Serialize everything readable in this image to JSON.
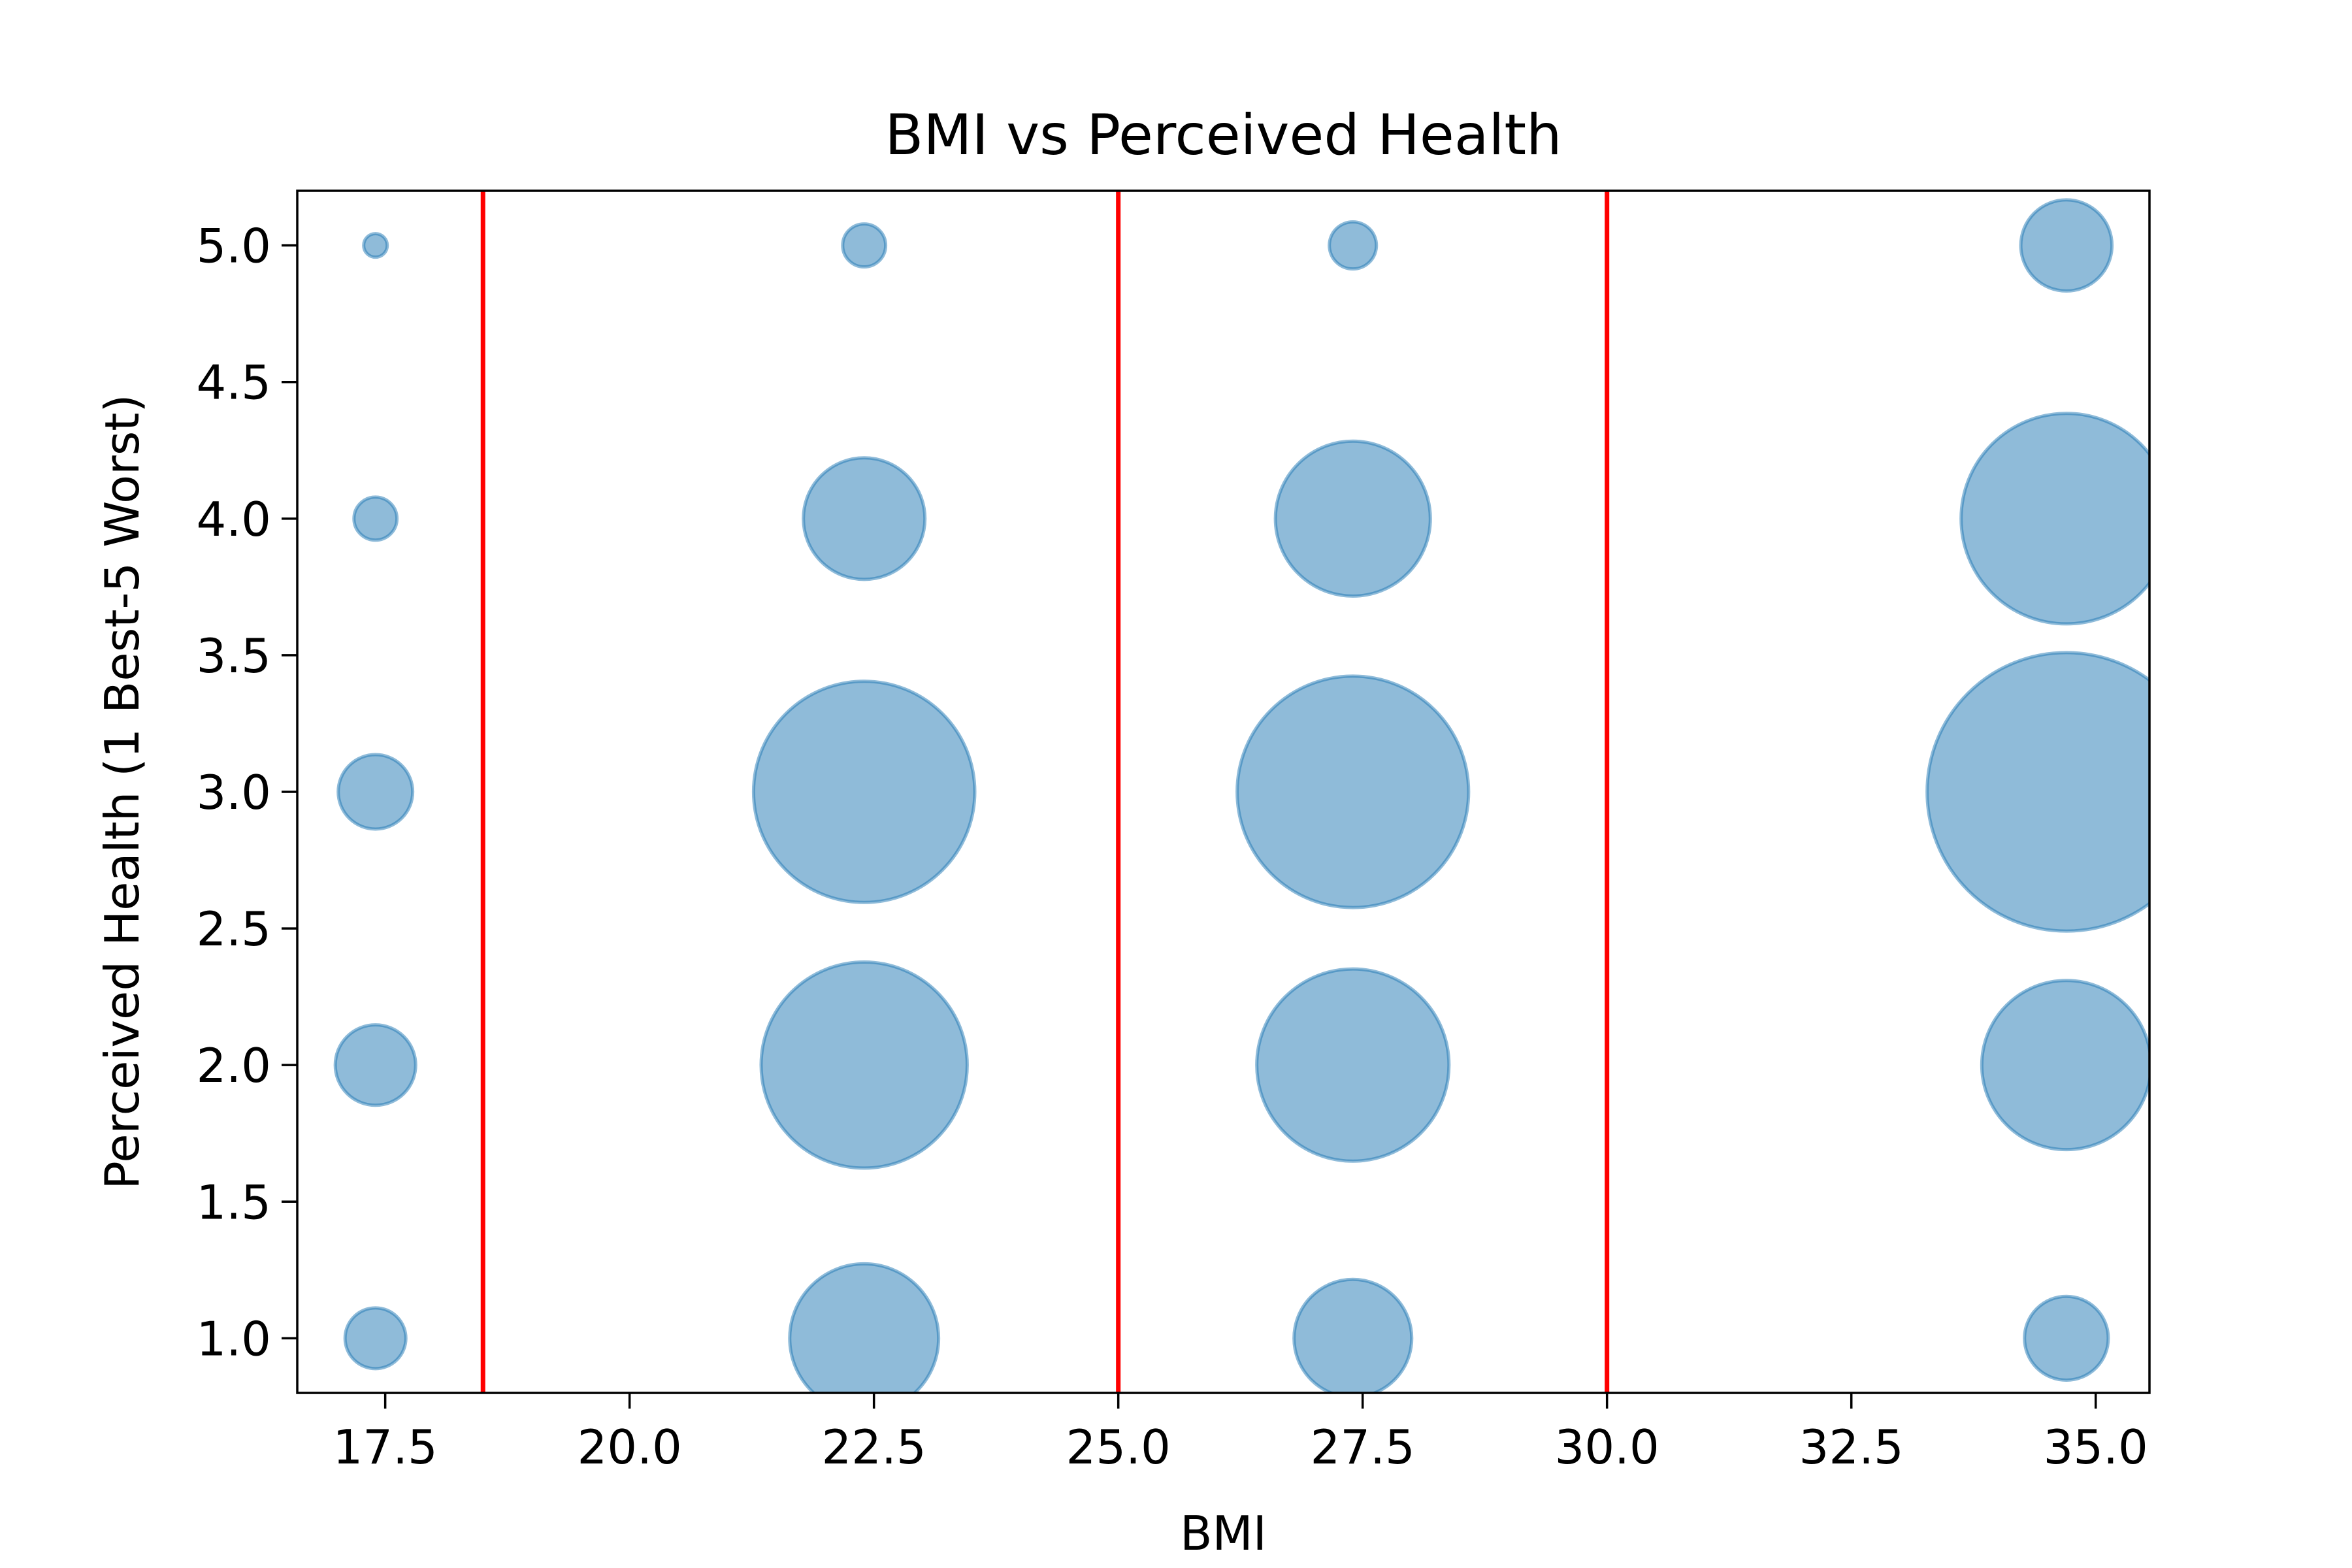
{
  "chart_data": {
    "type": "scatter",
    "title": "BMI vs Perceived Health",
    "xlabel": "BMI",
    "ylabel": "Perceived Health (1 Best-5 Worst)",
    "xlim": [
      16.6,
      35.55
    ],
    "ylim": [
      0.8,
      5.2
    ],
    "xticks": [
      17.5,
      20.0,
      22.5,
      25.0,
      27.5,
      30.0,
      32.5,
      35.0
    ],
    "xtick_labels": [
      "17.5",
      "20.0",
      "22.5",
      "25.0",
      "27.5",
      "30.0",
      "32.5",
      "35.0"
    ],
    "yticks": [
      1.0,
      1.5,
      2.0,
      2.5,
      3.0,
      3.5,
      4.0,
      4.5,
      5.0
    ],
    "ytick_labels": [
      "1.0",
      "1.5",
      "2.0",
      "2.5",
      "3.0",
      "3.5",
      "4.0",
      "4.5",
      "5.0"
    ],
    "grid": false,
    "bubble_color": "#1f77b4",
    "bubble_alpha": 0.5,
    "points": [
      {
        "x": 17.4,
        "y": 5,
        "size": 3
      },
      {
        "x": 17.4,
        "y": 4,
        "size": 10
      },
      {
        "x": 17.4,
        "y": 3,
        "size": 30
      },
      {
        "x": 17.4,
        "y": 2,
        "size": 35
      },
      {
        "x": 17.4,
        "y": 1,
        "size": 20
      },
      {
        "x": 22.4,
        "y": 5,
        "size": 10
      },
      {
        "x": 22.4,
        "y": 4,
        "size": 80
      },
      {
        "x": 22.4,
        "y": 3,
        "size": 265
      },
      {
        "x": 22.4,
        "y": 2,
        "size": 230
      },
      {
        "x": 22.4,
        "y": 1,
        "size": 120
      },
      {
        "x": 27.4,
        "y": 5,
        "size": 12
      },
      {
        "x": 27.4,
        "y": 4,
        "size": 130
      },
      {
        "x": 27.4,
        "y": 3,
        "size": 290
      },
      {
        "x": 27.4,
        "y": 2,
        "size": 200
      },
      {
        "x": 27.4,
        "y": 1,
        "size": 75
      },
      {
        "x": 34.7,
        "y": 5,
        "size": 45
      },
      {
        "x": 34.7,
        "y": 4,
        "size": 240
      },
      {
        "x": 34.7,
        "y": 3,
        "size": 420
      },
      {
        "x": 34.7,
        "y": 2,
        "size": 155
      },
      {
        "x": 34.7,
        "y": 1,
        "size": 38
      }
    ],
    "vertical_lines": [
      {
        "x": 18.5,
        "color": "#ff0000"
      },
      {
        "x": 25.0,
        "color": "#ff0000"
      },
      {
        "x": 30.0,
        "color": "#ff0000"
      }
    ]
  }
}
